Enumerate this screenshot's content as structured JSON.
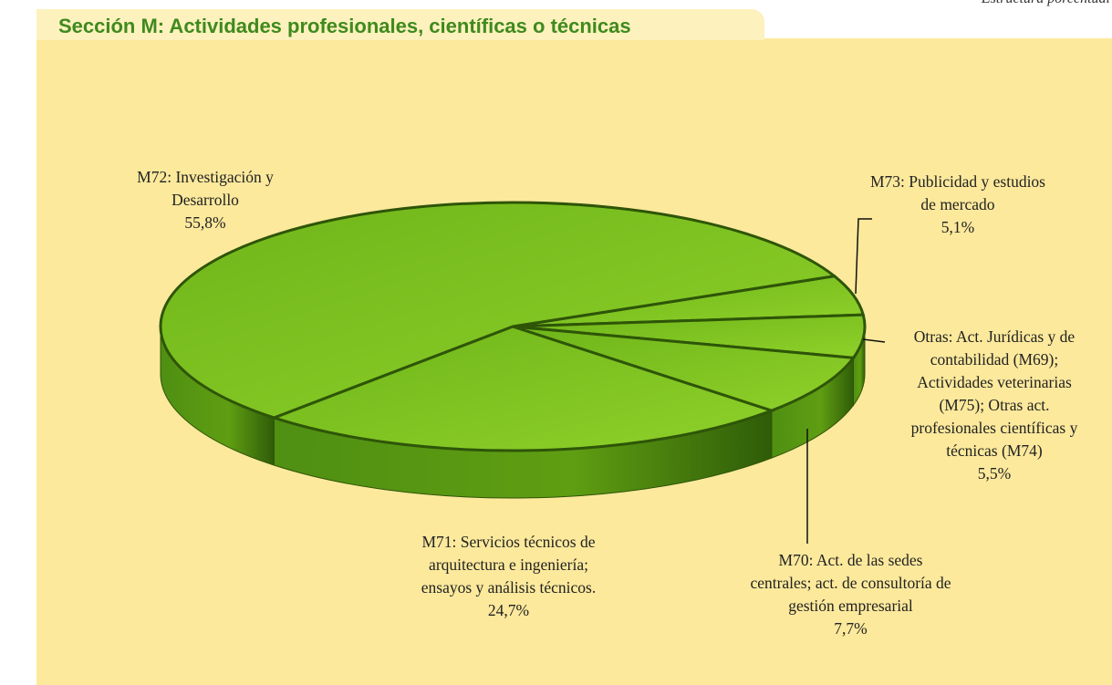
{
  "chart_data": {
    "type": "pie",
    "title": "Sección M: Actividades profesionales, científicas o técnicas",
    "subtitle": "Estructura porcentual",
    "categories": [
      "M72: Investigación y Desarrollo",
      "M73: Publicidad y estudios de mercado",
      "Otras: Act. Jurídicas y de contabilidad (M69); Actividades veterinarias (M75); Otras act. profesionales científicas y técnicas (M74)",
      "M70: Act. de las sedes centrales; act. de consultoría de gestión empresarial",
      "M71: Servicios técnicos de arquitectura e ingeniería; ensayos y análisis técnicos."
    ],
    "values": [
      55.8,
      5.1,
      5.5,
      7.7,
      24.7
    ],
    "value_labels": [
      "55,8%",
      "5,1%",
      "5,5%",
      "7,7%",
      "24,7%"
    ],
    "color": "#7cc21f"
  }
}
